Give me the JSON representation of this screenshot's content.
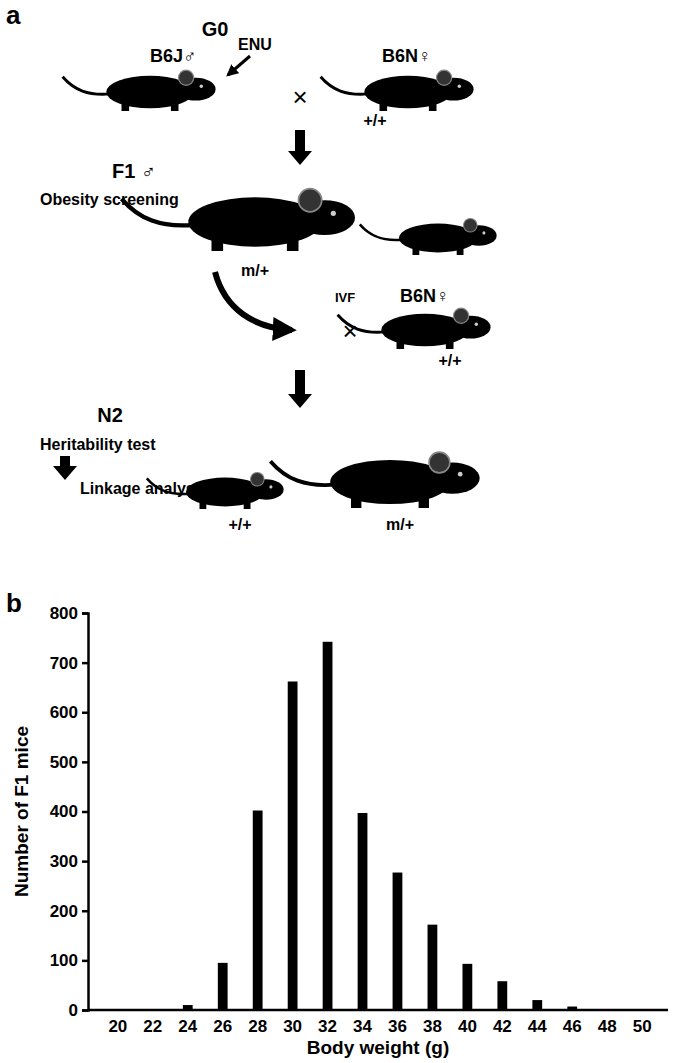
{
  "panel_labels": [
    "a",
    "b"
  ],
  "diagram": {
    "g0": "G0",
    "male_strain": "B6J♂",
    "mutagen": "ENU",
    "female_strain": "B6N♀",
    "wild_type": "+/+",
    "cross": "×",
    "f1": "F1 ♂",
    "screening": "Obesity screening",
    "mutant": "m/+",
    "ivf": "IVF",
    "n2": "N2",
    "heritability": "Heritability test",
    "linkage": "Linkage analysis"
  },
  "chart_data": {
    "type": "bar",
    "x_label": "Body weight (g)",
    "y_label": "Number of F1 mice",
    "categories": [
      "20",
      "22",
      "24",
      "26",
      "28",
      "30",
      "32",
      "34",
      "36",
      "38",
      "40",
      "42",
      "44",
      "46",
      "48",
      "50"
    ],
    "values": [
      0,
      0,
      10,
      95,
      402,
      662,
      742,
      397,
      277,
      172,
      93,
      58,
      20,
      7,
      0,
      0
    ],
    "color": "#000000",
    "ylim": [
      0,
      800
    ],
    "yticks": [
      0,
      100,
      200,
      300,
      400,
      500,
      600,
      700,
      800
    ],
    "grid": false
  }
}
